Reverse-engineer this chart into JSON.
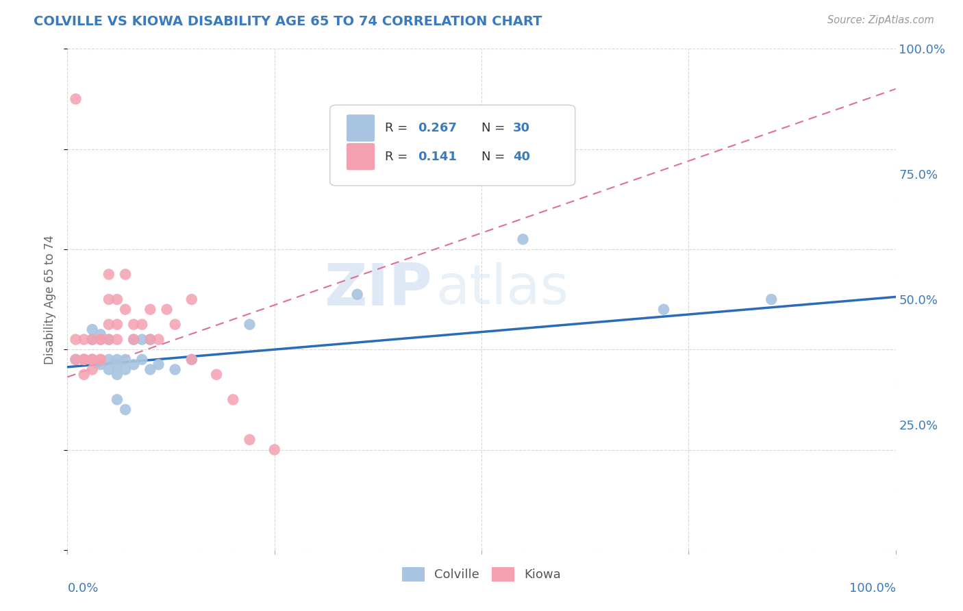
{
  "title": "COLVILLE VS KIOWA DISABILITY AGE 65 TO 74 CORRELATION CHART",
  "source": "Source: ZipAtlas.com",
  "ylabel": "Disability Age 65 to 74",
  "colville_R": 0.267,
  "colville_N": 30,
  "kiowa_R": 0.141,
  "kiowa_N": 40,
  "colville_color": "#a8c4e0",
  "kiowa_color": "#f4a0b0",
  "colville_line_color": "#2b6cb8",
  "kiowa_line_color": "#e07090",
  "legend_text_color": "#3a7abf",
  "title_color": "#3a7abf",
  "colville_x": [
    0.01,
    0.02,
    0.03,
    0.03,
    0.04,
    0.04,
    0.05,
    0.05,
    0.05,
    0.06,
    0.06,
    0.06,
    0.06,
    0.07,
    0.07,
    0.07,
    0.08,
    0.08,
    0.09,
    0.09,
    0.1,
    0.1,
    0.11,
    0.13,
    0.15,
    0.22,
    0.35,
    0.55,
    0.72,
    0.85
  ],
  "colville_y": [
    0.38,
    0.38,
    0.42,
    0.44,
    0.37,
    0.43,
    0.36,
    0.38,
    0.42,
    0.35,
    0.3,
    0.37,
    0.38,
    0.28,
    0.36,
    0.38,
    0.37,
    0.42,
    0.38,
    0.42,
    0.36,
    0.42,
    0.37,
    0.36,
    0.38,
    0.45,
    0.51,
    0.62,
    0.48,
    0.5
  ],
  "kiowa_x": [
    0.01,
    0.01,
    0.01,
    0.02,
    0.02,
    0.02,
    0.02,
    0.02,
    0.03,
    0.03,
    0.03,
    0.03,
    0.03,
    0.04,
    0.04,
    0.04,
    0.04,
    0.05,
    0.05,
    0.05,
    0.05,
    0.06,
    0.06,
    0.06,
    0.07,
    0.07,
    0.08,
    0.08,
    0.09,
    0.1,
    0.1,
    0.11,
    0.12,
    0.13,
    0.15,
    0.15,
    0.18,
    0.2,
    0.22,
    0.25
  ],
  "kiowa_y": [
    0.38,
    0.42,
    0.9,
    0.35,
    0.38,
    0.42,
    0.38,
    0.38,
    0.38,
    0.42,
    0.38,
    0.38,
    0.36,
    0.38,
    0.42,
    0.42,
    0.38,
    0.42,
    0.45,
    0.55,
    0.5,
    0.42,
    0.5,
    0.45,
    0.55,
    0.48,
    0.42,
    0.45,
    0.45,
    0.42,
    0.48,
    0.42,
    0.48,
    0.45,
    0.38,
    0.5,
    0.35,
    0.3,
    0.22,
    0.2
  ],
  "yticks": [
    0.0,
    0.25,
    0.5,
    0.75,
    1.0
  ],
  "ytick_labels": [
    "",
    "25.0%",
    "50.0%",
    "75.0%",
    "100.0%"
  ],
  "xlim": [
    0.0,
    1.0
  ],
  "ylim": [
    0.0,
    1.0
  ],
  "background_color": "#ffffff",
  "grid_color": "#d8d8d8"
}
